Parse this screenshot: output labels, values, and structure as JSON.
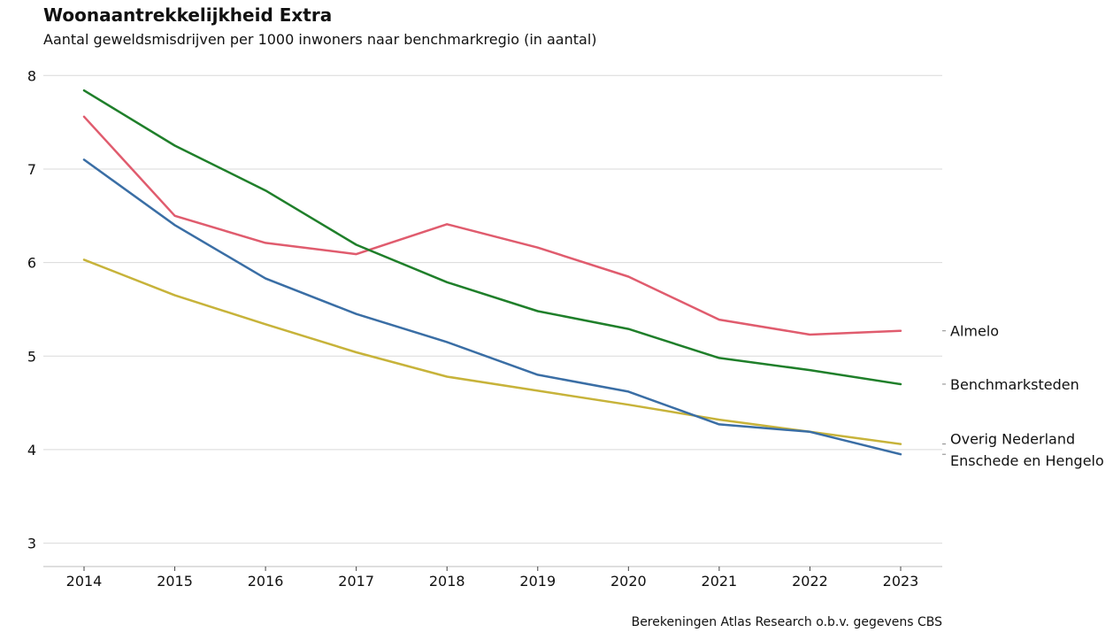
{
  "chart_data": {
    "type": "line",
    "title": "Woonaantrekkelijkheid Extra",
    "subtitle": "Aantal geweldsmisdrijven per 1000 inwoners naar benchmarkregio (in aantal)",
    "caption": "Berekeningen Atlas Research o.b.v. gegevens CBS",
    "x": [
      "2014",
      "2015",
      "2016",
      "2017",
      "2018",
      "2019",
      "2020",
      "2021",
      "2022",
      "2023"
    ],
    "ylim": [
      2.75,
      8.05
    ],
    "yticks": [
      3,
      4,
      5,
      6,
      7,
      8
    ],
    "grid": true,
    "legend": "direct labels at right",
    "series": [
      {
        "name": "Almelo",
        "color": "#e05c6e",
        "values": [
          7.56,
          6.5,
          6.21,
          6.09,
          6.41,
          6.16,
          5.85,
          5.39,
          5.23,
          5.27
        ]
      },
      {
        "name": "Benchmarksteden",
        "color": "#1f7f2a",
        "values": [
          7.84,
          7.25,
          6.77,
          6.19,
          5.79,
          5.48,
          5.29,
          4.98,
          4.85,
          4.7
        ]
      },
      {
        "name": "Overig Nederland",
        "color": "#c7b33a",
        "values": [
          6.03,
          5.65,
          5.34,
          5.04,
          4.78,
          4.63,
          4.48,
          4.32,
          4.19,
          4.06
        ]
      },
      {
        "name": "Enschede en Hengelo",
        "color": "#3a6ea5",
        "values": [
          7.1,
          6.4,
          5.83,
          5.45,
          5.15,
          4.8,
          4.62,
          4.27,
          4.19,
          3.95
        ]
      }
    ]
  }
}
